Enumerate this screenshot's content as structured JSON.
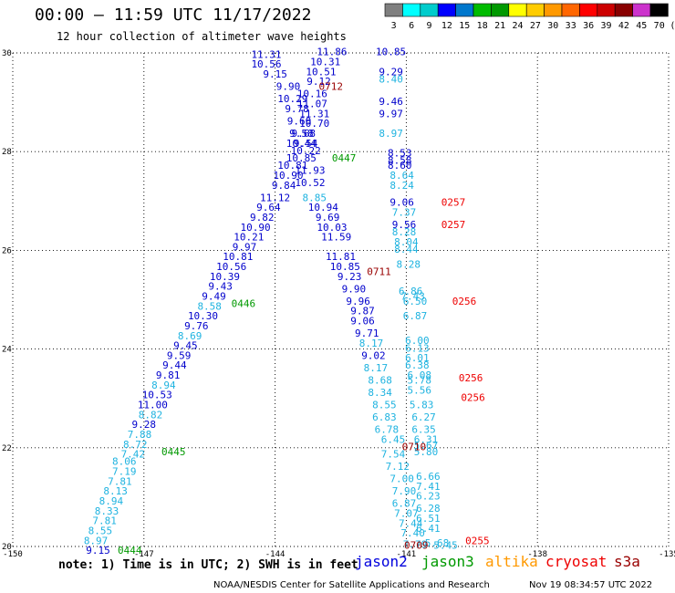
{
  "header": {
    "title": "00:00 – 11:59 UTC 11/17/2022",
    "subtitle": "12 hour collection of altimeter wave heights"
  },
  "legend": {
    "unit": "(ft)",
    "ticks": [
      "3",
      "6",
      "9",
      "12",
      "15",
      "18",
      "21",
      "24",
      "27",
      "30",
      "33",
      "36",
      "39",
      "42",
      "45",
      "70"
    ],
    "colors": [
      "#7f7f7f",
      "#00ffff",
      "#00cccc",
      "#0000ff",
      "#0077cc",
      "#00bb00",
      "#009900",
      "#ffff00",
      "#ffcc00",
      "#ff9900",
      "#ff6600",
      "#ff0000",
      "#cc0000",
      "#880000",
      "#cc33cc",
      "#000000"
    ]
  },
  "map": {
    "xlim": [
      -150,
      -135
    ],
    "ylim": [
      20,
      30
    ],
    "x_ticks": [
      "-150",
      "-147",
      "-144",
      "-141",
      "-138",
      "-135"
    ],
    "y_ticks": [
      "20",
      "22",
      "24",
      "26",
      "28",
      "30"
    ],
    "grid": "dotted",
    "colors": {
      "dark_blue": "#0000cc",
      "light_blue": "#1fb3e0",
      "time_green": "#009900",
      "time_darkred": "#990000",
      "time_red": "#ee0000"
    },
    "points": [
      {
        "lon": -144.2,
        "lat": 29.9,
        "label": "11.31",
        "color": "dark_blue"
      },
      {
        "lon": -144.2,
        "lat": 29.7,
        "label": "10.56",
        "color": "dark_blue"
      },
      {
        "lon": -144.0,
        "lat": 29.5,
        "label": "9.15",
        "color": "dark_blue"
      },
      {
        "lon": -143.7,
        "lat": 29.25,
        "label": "9.90",
        "color": "dark_blue"
      },
      {
        "lon": -143.6,
        "lat": 29.0,
        "label": "10.29",
        "color": "dark_blue"
      },
      {
        "lon": -143.5,
        "lat": 28.8,
        "label": "9.78",
        "color": "dark_blue"
      },
      {
        "lon": -143.45,
        "lat": 28.55,
        "label": "9.60",
        "color": "dark_blue"
      },
      {
        "lon": -143.4,
        "lat": 28.3,
        "label": "9.58",
        "color": "dark_blue"
      },
      {
        "lon": -143.4,
        "lat": 28.1,
        "label": "10.44",
        "color": "dark_blue"
      },
      {
        "lon": -143.3,
        "lat": 27.95,
        "label": "10.22",
        "color": "dark_blue"
      },
      {
        "lon": -142.7,
        "lat": 29.95,
        "label": "11.86",
        "color": "dark_blue"
      },
      {
        "lon": -142.85,
        "lat": 29.75,
        "label": "10.31",
        "color": "dark_blue"
      },
      {
        "lon": -142.95,
        "lat": 29.55,
        "label": "10.51",
        "color": "dark_blue"
      },
      {
        "lon": -143.0,
        "lat": 29.35,
        "label": "9.12",
        "color": "dark_blue"
      },
      {
        "lon": -143.15,
        "lat": 29.1,
        "label": "10.16",
        "color": "dark_blue"
      },
      {
        "lon": -143.15,
        "lat": 28.9,
        "label": "11.07",
        "color": "dark_blue"
      },
      {
        "lon": -143.1,
        "lat": 28.7,
        "label": "11.31",
        "color": "dark_blue"
      },
      {
        "lon": -143.1,
        "lat": 28.5,
        "label": "10.70",
        "color": "dark_blue"
      },
      {
        "lon": -143.35,
        "lat": 28.3,
        "label": "9.68",
        "color": "dark_blue"
      },
      {
        "lon": -143.3,
        "lat": 28.1,
        "label": "9.54",
        "color": "dark_blue"
      },
      {
        "lon": -143.4,
        "lat": 27.8,
        "label": "10.85",
        "color": "dark_blue"
      },
      {
        "lon": -143.6,
        "lat": 27.65,
        "label": "10.81",
        "color": "dark_blue"
      },
      {
        "lon": -143.2,
        "lat": 27.55,
        "label": "11.93",
        "color": "dark_blue"
      },
      {
        "lon": -143.7,
        "lat": 27.45,
        "label": "10.90",
        "color": "dark_blue"
      },
      {
        "lon": -143.2,
        "lat": 27.3,
        "label": "10.52",
        "color": "dark_blue"
      },
      {
        "lon": -143.8,
        "lat": 27.25,
        "label": "9.84",
        "color": "dark_blue"
      },
      {
        "lon": -144.0,
        "lat": 27.0,
        "label": "11.12",
        "color": "dark_blue"
      },
      {
        "lon": -143.1,
        "lat": 27.0,
        "label": "8.85",
        "color": "light_blue"
      },
      {
        "lon": -144.15,
        "lat": 26.8,
        "label": "9.64",
        "color": "dark_blue"
      },
      {
        "lon": -142.9,
        "lat": 26.8,
        "label": "10.94",
        "color": "dark_blue"
      },
      {
        "lon": -144.3,
        "lat": 26.6,
        "label": "9.82",
        "color": "dark_blue"
      },
      {
        "lon": -142.8,
        "lat": 26.6,
        "label": "9.69",
        "color": "dark_blue"
      },
      {
        "lon": -144.45,
        "lat": 26.4,
        "label": "10.90",
        "color": "dark_blue"
      },
      {
        "lon": -142.7,
        "lat": 26.4,
        "label": "10.03",
        "color": "dark_blue"
      },
      {
        "lon": -144.6,
        "lat": 26.2,
        "label": "10.21",
        "color": "dark_blue"
      },
      {
        "lon": -142.6,
        "lat": 26.2,
        "label": "11.59",
        "color": "dark_blue"
      },
      {
        "lon": -144.7,
        "lat": 26.0,
        "label": "9.97",
        "color": "dark_blue"
      },
      {
        "lon": -144.85,
        "lat": 25.8,
        "label": "10.81",
        "color": "dark_blue"
      },
      {
        "lon": -142.5,
        "lat": 25.8,
        "label": "11.81",
        "color": "dark_blue"
      },
      {
        "lon": -145.0,
        "lat": 25.6,
        "label": "10.56",
        "color": "dark_blue"
      },
      {
        "lon": -142.4,
        "lat": 25.6,
        "label": "10.85",
        "color": "dark_blue"
      },
      {
        "lon": -145.15,
        "lat": 25.4,
        "label": "10.39",
        "color": "dark_blue"
      },
      {
        "lon": -142.3,
        "lat": 25.4,
        "label": "9.23",
        "color": "dark_blue"
      },
      {
        "lon": -145.25,
        "lat": 25.2,
        "label": "9.43",
        "color": "dark_blue"
      },
      {
        "lon": -142.2,
        "lat": 25.15,
        "label": "9.90",
        "color": "dark_blue"
      },
      {
        "lon": -145.4,
        "lat": 25.0,
        "label": "9.49",
        "color": "dark_blue"
      },
      {
        "lon": -142.1,
        "lat": 24.9,
        "label": "9.96",
        "color": "dark_blue"
      },
      {
        "lon": -145.5,
        "lat": 24.8,
        "label": "8.58",
        "color": "light_blue"
      },
      {
        "lon": -142.0,
        "lat": 24.7,
        "label": "9.87",
        "color": "dark_blue"
      },
      {
        "lon": -145.65,
        "lat": 24.6,
        "label": "10.30",
        "color": "dark_blue"
      },
      {
        "lon": -142.0,
        "lat": 24.5,
        "label": "9.06",
        "color": "dark_blue"
      },
      {
        "lon": -145.8,
        "lat": 24.4,
        "label": "9.76",
        "color": "dark_blue"
      },
      {
        "lon": -141.9,
        "lat": 24.25,
        "label": "9.71",
        "color": "dark_blue"
      },
      {
        "lon": -145.95,
        "lat": 24.2,
        "label": "8.69",
        "color": "light_blue"
      },
      {
        "lon": -141.8,
        "lat": 24.05,
        "label": "8.17",
        "color": "light_blue"
      },
      {
        "lon": -146.05,
        "lat": 24.0,
        "label": "9.45",
        "color": "dark_blue"
      },
      {
        "lon": -146.2,
        "lat": 23.8,
        "label": "9.59",
        "color": "dark_blue"
      },
      {
        "lon": -141.75,
        "lat": 23.8,
        "label": "9.02",
        "color": "dark_blue"
      },
      {
        "lon": -146.3,
        "lat": 23.6,
        "label": "9.44",
        "color": "dark_blue"
      },
      {
        "lon": -141.7,
        "lat": 23.55,
        "label": "8.17",
        "color": "light_blue"
      },
      {
        "lon": -146.45,
        "lat": 23.4,
        "label": "9.81",
        "color": "dark_blue"
      },
      {
        "lon": -141.6,
        "lat": 23.3,
        "label": "8.68",
        "color": "light_blue"
      },
      {
        "lon": -146.55,
        "lat": 23.2,
        "label": "8.94",
        "color": "light_blue"
      },
      {
        "lon": -141.6,
        "lat": 23.05,
        "label": "8.34",
        "color": "light_blue"
      },
      {
        "lon": -146.7,
        "lat": 23.0,
        "label": "10.53",
        "color": "dark_blue"
      },
      {
        "lon": -146.8,
        "lat": 22.8,
        "label": "11.00",
        "color": "dark_blue"
      },
      {
        "lon": -141.5,
        "lat": 22.8,
        "label": "8.55",
        "color": "light_blue"
      },
      {
        "lon": -146.85,
        "lat": 22.6,
        "label": "8.82",
        "color": "light_blue"
      },
      {
        "lon": -141.5,
        "lat": 22.55,
        "label": "6.83",
        "color": "light_blue"
      },
      {
        "lon": -147.0,
        "lat": 22.4,
        "label": "9.28",
        "color": "dark_blue"
      },
      {
        "lon": -141.45,
        "lat": 22.3,
        "label": "6.78",
        "color": "light_blue"
      },
      {
        "lon": -147.1,
        "lat": 22.2,
        "label": "7.88",
        "color": "light_blue"
      },
      {
        "lon": -141.3,
        "lat": 22.1,
        "label": "6.45",
        "color": "light_blue"
      },
      {
        "lon": -147.2,
        "lat": 22.0,
        "label": "8.72",
        "color": "light_blue"
      },
      {
        "lon": -147.25,
        "lat": 21.8,
        "label": "7.42",
        "color": "light_blue"
      },
      {
        "lon": -141.3,
        "lat": 21.8,
        "label": "7.54",
        "color": "light_blue"
      },
      {
        "lon": -147.45,
        "lat": 21.65,
        "label": "8.06",
        "color": "light_blue"
      },
      {
        "lon": -147.45,
        "lat": 21.45,
        "label": "7.19",
        "color": "light_blue"
      },
      {
        "lon": -141.2,
        "lat": 21.55,
        "label": "7.12",
        "color": "light_blue"
      },
      {
        "lon": -147.55,
        "lat": 21.25,
        "label": "7.81",
        "color": "light_blue"
      },
      {
        "lon": -141.1,
        "lat": 21.3,
        "label": "7.00",
        "color": "light_blue"
      },
      {
        "lon": -147.65,
        "lat": 21.05,
        "label": "8.13",
        "color": "light_blue"
      },
      {
        "lon": -141.05,
        "lat": 21.05,
        "label": "7.90",
        "color": "light_blue"
      },
      {
        "lon": -147.75,
        "lat": 20.85,
        "label": "8.94",
        "color": "light_blue"
      },
      {
        "lon": -141.05,
        "lat": 20.8,
        "label": "6.87",
        "color": "light_blue"
      },
      {
        "lon": -147.85,
        "lat": 20.65,
        "label": "8.33",
        "color": "light_blue"
      },
      {
        "lon": -141.0,
        "lat": 20.6,
        "label": "7.07",
        "color": "light_blue"
      },
      {
        "lon": -147.9,
        "lat": 20.45,
        "label": "7.81",
        "color": "light_blue"
      },
      {
        "lon": -140.9,
        "lat": 20.4,
        "label": "7.44",
        "color": "light_blue"
      },
      {
        "lon": -148.0,
        "lat": 20.25,
        "label": "8.55",
        "color": "light_blue"
      },
      {
        "lon": -140.85,
        "lat": 20.2,
        "label": "7.40",
        "color": "light_blue"
      },
      {
        "lon": -148.1,
        "lat": 20.05,
        "label": "8.97",
        "color": "light_blue"
      },
      {
        "lon": -140.8,
        "lat": 19.97,
        "label": "7.79",
        "color": "light_blue"
      },
      {
        "lon": -148.05,
        "lat": 19.85,
        "label": "9.15",
        "color": "dark_blue"
      },
      {
        "lon": -141.35,
        "lat": 29.95,
        "label": "10.85",
        "color": "dark_blue"
      },
      {
        "lon": -141.35,
        "lat": 29.55,
        "label": "9.29",
        "color": "dark_blue"
      },
      {
        "lon": -141.35,
        "lat": 29.4,
        "label": "8.40",
        "color": "light_blue"
      },
      {
        "lon": -141.35,
        "lat": 28.95,
        "label": "9.46",
        "color": "dark_blue"
      },
      {
        "lon": -141.35,
        "lat": 28.7,
        "label": "9.97",
        "color": "dark_blue"
      },
      {
        "lon": -141.35,
        "lat": 28.3,
        "label": "8.97",
        "color": "light_blue"
      },
      {
        "lon": -141.15,
        "lat": 27.9,
        "label": "8.53",
        "color": "dark_blue"
      },
      {
        "lon": -141.15,
        "lat": 27.75,
        "label": "8.58",
        "color": "dark_blue"
      },
      {
        "lon": -141.15,
        "lat": 27.65,
        "label": "8.60",
        "color": "dark_blue"
      },
      {
        "lon": -141.1,
        "lat": 27.45,
        "label": "8.64",
        "color": "light_blue"
      },
      {
        "lon": -141.1,
        "lat": 27.25,
        "label": "8.24",
        "color": "light_blue"
      },
      {
        "lon": -141.1,
        "lat": 26.9,
        "label": "9.06",
        "color": "dark_blue"
      },
      {
        "lon": -141.05,
        "lat": 26.7,
        "label": "7.37",
        "color": "light_blue"
      },
      {
        "lon": -141.05,
        "lat": 26.45,
        "label": "9.56",
        "color": "dark_blue"
      },
      {
        "lon": -141.05,
        "lat": 26.3,
        "label": "8.28",
        "color": "light_blue"
      },
      {
        "lon": -141.0,
        "lat": 26.1,
        "label": "8.04",
        "color": "light_blue"
      },
      {
        "lon": -141.0,
        "lat": 25.95,
        "label": "8.44",
        "color": "light_blue"
      },
      {
        "lon": -140.95,
        "lat": 25.65,
        "label": "8.28",
        "color": "light_blue"
      },
      {
        "lon": -140.9,
        "lat": 25.1,
        "label": "6.86",
        "color": "light_blue"
      },
      {
        "lon": -140.85,
        "lat": 25.0,
        "label": "7.43",
        "color": "light_blue"
      },
      {
        "lon": -140.8,
        "lat": 24.9,
        "label": "6.50",
        "color": "light_blue"
      },
      {
        "lon": -140.8,
        "lat": 24.6,
        "label": "6.87",
        "color": "light_blue"
      },
      {
        "lon": -140.75,
        "lat": 24.1,
        "label": "6.00",
        "color": "light_blue"
      },
      {
        "lon": -140.75,
        "lat": 23.95,
        "label": "6.13",
        "color": "light_blue"
      },
      {
        "lon": -140.75,
        "lat": 23.75,
        "label": "6.01",
        "color": "light_blue"
      },
      {
        "lon": -140.75,
        "lat": 23.6,
        "label": "6.38",
        "color": "light_blue"
      },
      {
        "lon": -140.7,
        "lat": 23.4,
        "label": "6.08",
        "color": "light_blue"
      },
      {
        "lon": -140.7,
        "lat": 23.3,
        "label": "5.78",
        "color": "light_blue"
      },
      {
        "lon": -140.7,
        "lat": 23.1,
        "label": "5.56",
        "color": "light_blue"
      },
      {
        "lon": -140.65,
        "lat": 22.8,
        "label": "5.83",
        "color": "light_blue"
      },
      {
        "lon": -140.6,
        "lat": 22.55,
        "label": "6.27",
        "color": "light_blue"
      },
      {
        "lon": -140.6,
        "lat": 22.3,
        "label": "6.35",
        "color": "light_blue"
      },
      {
        "lon": -140.55,
        "lat": 22.1,
        "label": "6.31",
        "color": "light_blue"
      },
      {
        "lon": -140.55,
        "lat": 21.98,
        "label": "5.67",
        "color": "light_blue"
      },
      {
        "lon": -140.55,
        "lat": 21.85,
        "label": "5.80",
        "color": "light_blue"
      },
      {
        "lon": -140.5,
        "lat": 21.35,
        "label": "6.66",
        "color": "light_blue"
      },
      {
        "lon": -140.5,
        "lat": 21.15,
        "label": "7.41",
        "color": "light_blue"
      },
      {
        "lon": -140.5,
        "lat": 20.95,
        "label": "6.23",
        "color": "light_blue"
      },
      {
        "lon": -140.5,
        "lat": 20.7,
        "label": "6.28",
        "color": "light_blue"
      },
      {
        "lon": -140.5,
        "lat": 20.5,
        "label": "6.51",
        "color": "light_blue"
      },
      {
        "lon": -140.5,
        "lat": 20.3,
        "label": "6.41",
        "color": "light_blue"
      },
      {
        "lon": -140.3,
        "lat": 20.0,
        "label": "5.68",
        "color": "light_blue"
      },
      {
        "lon": -140.1,
        "lat": 19.95,
        "label": "5.45",
        "color": "light_blue"
      }
    ],
    "pass_labels": [
      {
        "lon": -143.0,
        "lat": 29.25,
        "label": "0712",
        "color": "time_darkred"
      },
      {
        "lon": -142.7,
        "lat": 27.8,
        "label": "0447",
        "color": "time_green"
      },
      {
        "lon": -140.2,
        "lat": 26.9,
        "label": "0257",
        "color": "time_red"
      },
      {
        "lon": -140.2,
        "lat": 26.45,
        "label": "0257",
        "color": "time_red"
      },
      {
        "lon": -141.9,
        "lat": 25.5,
        "label": "0711",
        "color": "time_darkred"
      },
      {
        "lon": -145.0,
        "lat": 24.85,
        "label": "0446",
        "color": "time_green"
      },
      {
        "lon": -139.95,
        "lat": 24.9,
        "label": "0256",
        "color": "time_red"
      },
      {
        "lon": -139.8,
        "lat": 23.35,
        "label": "0256",
        "color": "time_red"
      },
      {
        "lon": -139.75,
        "lat": 22.95,
        "label": "0256",
        "color": "time_red"
      },
      {
        "lon": -141.1,
        "lat": 21.95,
        "label": "0710",
        "color": "time_darkred"
      },
      {
        "lon": -146.6,
        "lat": 21.85,
        "label": "0445",
        "color": "time_green"
      },
      {
        "lon": -139.65,
        "lat": 20.05,
        "label": "0255",
        "color": "time_red"
      },
      {
        "lon": -141.05,
        "lat": 19.95,
        "label": "0709",
        "color": "time_darkred"
      },
      {
        "lon": -147.6,
        "lat": 19.85,
        "label": "0444",
        "color": "time_green"
      }
    ]
  },
  "footer": {
    "note": "note: 1) Time is in UTC; 2) SWH is in feet",
    "satellites": [
      {
        "name": "jason2",
        "color": "#0000dd"
      },
      {
        "name": "jason3",
        "color": "#009900"
      },
      {
        "name": "altika",
        "color": "#ff9900"
      },
      {
        "name": "cryosat",
        "color": "#ee0000"
      },
      {
        "name": "s3a",
        "color": "#990000"
      }
    ],
    "credit": "NOAA/NESDIS Center for Satellite Applications and Research",
    "timestamp": "Nov 19 08:34:57 UTC 2022"
  }
}
